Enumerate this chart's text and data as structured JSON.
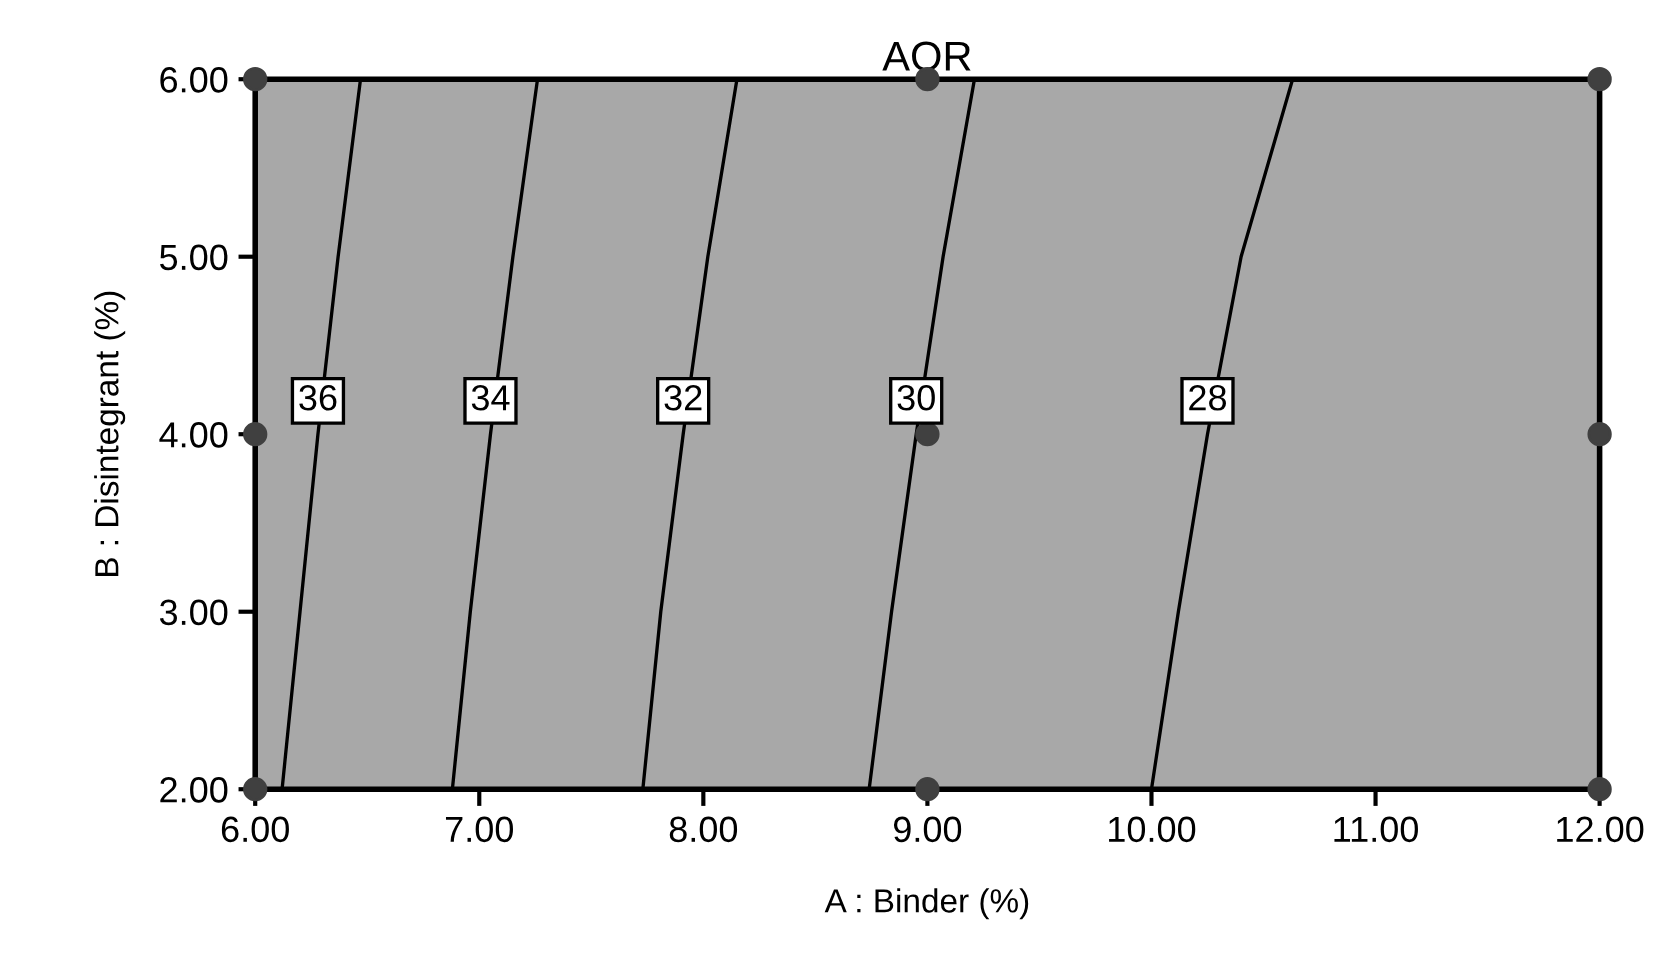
{
  "chart_data": {
    "type": "line",
    "title": "AOR",
    "xlabel": "A : Binder (%)",
    "ylabel": "B : Disintegrant (%)",
    "xlim": [
      6,
      12
    ],
    "xticks": [
      {
        "value": 6,
        "label": "6.00"
      },
      {
        "value": 7,
        "label": "7.00"
      },
      {
        "value": 8,
        "label": "8.00"
      },
      {
        "value": 9,
        "label": "9.00"
      },
      {
        "value": 10,
        "label": "10.00"
      },
      {
        "value": 11,
        "label": "11.00"
      },
      {
        "value": 12,
        "label": "12.00"
      }
    ],
    "ylim": [
      2,
      6
    ],
    "yticks": [
      {
        "value": 2,
        "label": "2.00"
      },
      {
        "value": 3,
        "label": "3.00"
      },
      {
        "value": 4,
        "label": "4.00"
      },
      {
        "value": 5,
        "label": "5.00"
      },
      {
        "value": 6,
        "label": "6.00"
      }
    ],
    "grid": false,
    "legend": false,
    "series": [
      {
        "name": "36",
        "color": "#000000",
        "marker": "none",
        "x": [
          6.12,
          6.2,
          6.28,
          6.37,
          6.47
        ],
        "values": [
          2,
          3,
          4,
          5,
          6
        ]
      },
      {
        "name": "34",
        "color": "#000000",
        "marker": "none",
        "x": [
          6.88,
          6.96,
          7.05,
          7.15,
          7.26
        ],
        "values": [
          2,
          3,
          4,
          5,
          6
        ]
      },
      {
        "name": "32",
        "color": "#000000",
        "marker": "none",
        "x": [
          7.73,
          7.81,
          7.91,
          8.02,
          8.15
        ],
        "values": [
          2,
          3,
          4,
          5,
          6
        ]
      },
      {
        "name": "30",
        "color": "#000000",
        "marker": "none",
        "x": [
          8.74,
          8.84,
          8.95,
          9.07,
          9.21
        ],
        "values": [
          2,
          3,
          4,
          5,
          6
        ]
      },
      {
        "name": "28",
        "color": "#000000",
        "marker": "none",
        "x": [
          10.0,
          10.12,
          10.25,
          10.4,
          10.63
        ],
        "values": [
          2,
          3,
          4,
          5,
          6
        ]
      },
      {
        "color": "#404040",
        "type": "scatter",
        "marker": "circle",
        "x": [
          6,
          6,
          6,
          9,
          9,
          9,
          12,
          12,
          12
        ],
        "values": [
          2,
          4,
          6,
          2,
          4,
          6,
          2,
          4,
          6
        ]
      }
    ]
  }
}
